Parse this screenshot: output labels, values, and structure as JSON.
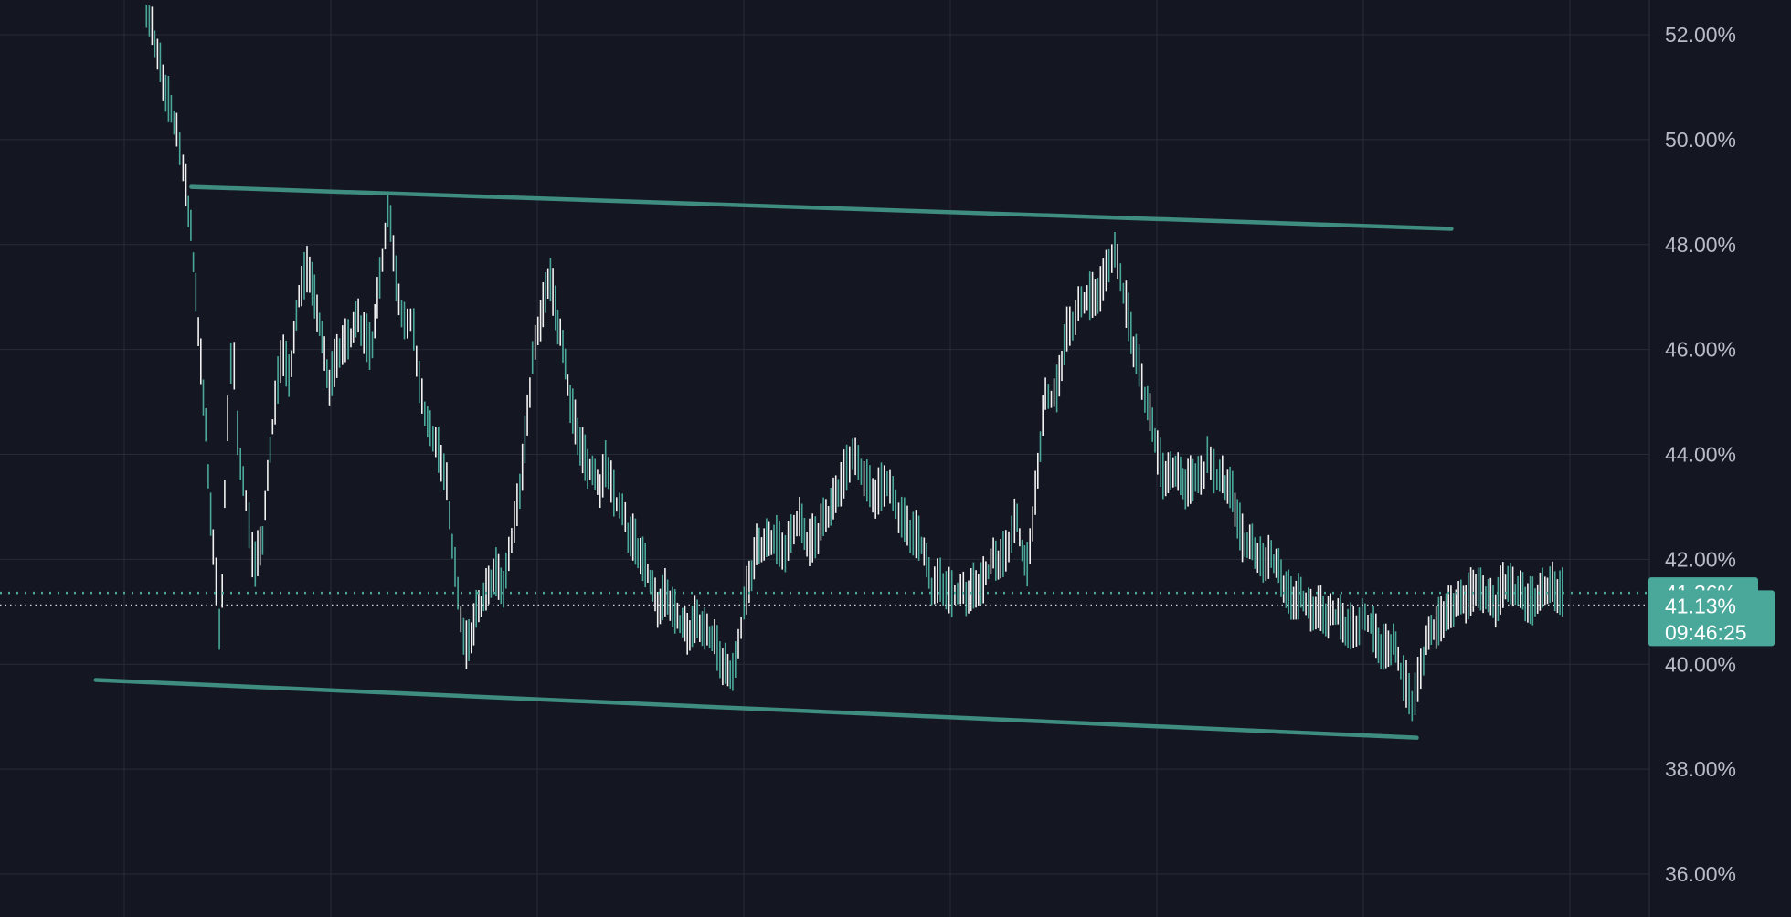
{
  "chart_data": {
    "type": "line",
    "title": "",
    "xlabel": "",
    "ylabel": "",
    "y_axis_side": "right",
    "ylim": [
      35.8,
      52.6
    ],
    "y_ticks": [
      52,
      50,
      48,
      46,
      44,
      42,
      40,
      38,
      36
    ],
    "y_tick_labels": [
      "52.00%",
      "50.00%",
      "48.00%",
      "46.00%",
      "44.00%",
      "42.00%",
      "40.00%",
      "38.00%",
      "36.00%"
    ],
    "x_range": [
      0,
      1000
    ],
    "grid": true,
    "series": [
      {
        "style": "bar-ticks",
        "x": [
          88,
          93,
          98,
          103,
          108,
          112,
          115,
          118,
          121,
          124,
          127,
          130,
          134,
          137,
          141,
          145,
          150,
          154,
          160,
          166,
          171,
          176,
          182,
          187,
          193,
          199,
          205,
          212,
          218,
          225,
          231,
          236,
          241,
          246,
          250,
          255,
          260,
          265,
          270,
          275,
          282,
          288,
          294,
          300,
          306,
          311,
          316,
          322,
          327,
          333,
          339,
          345,
          351,
          357,
          363,
          368,
          373,
          380,
          386,
          392,
          398,
          404,
          410,
          416,
          422,
          428,
          434,
          439,
          445,
          452,
          458,
          464,
          470,
          477,
          484,
          490,
          497,
          503,
          509,
          516,
          523,
          530,
          537,
          544,
          551,
          558,
          564,
          571,
          578,
          585,
          591,
          597,
          603,
          609,
          616,
          622,
          627,
          633,
          640,
          646,
          653,
          660,
          668,
          675,
          682,
          688,
          695,
          701,
          706,
          712,
          718,
          724,
          729,
          733,
          737,
          742,
          748,
          754,
          760,
          765,
          770,
          776,
          782,
          788,
          794,
          800,
          806,
          812,
          818,
          825,
          832,
          838,
          844,
          850,
          857,
          864,
          870,
          876,
          882,
          888,
          894,
          900,
          906,
          912,
          918,
          924,
          930,
          936,
          942,
          948
        ],
        "values": [
          52.5,
          52.0,
          51.3,
          50.7,
          50.0,
          49.4,
          48.6,
          47.4,
          46.1,
          44.9,
          43.1,
          42.0,
          40.3,
          44.1,
          46.3,
          43.8,
          42.9,
          41.8,
          42.6,
          44.8,
          46.0,
          45.4,
          47.2,
          47.6,
          46.6,
          45.3,
          46.0,
          46.2,
          46.6,
          46.0,
          47.5,
          48.8,
          47.1,
          46.4,
          46.7,
          45.2,
          44.5,
          44.2,
          43.7,
          42.0,
          40.3,
          40.9,
          41.3,
          41.8,
          41.5,
          42.5,
          43.5,
          45.6,
          46.4,
          47.5,
          46.4,
          45.1,
          44.3,
          43.7,
          43.3,
          43.9,
          43.1,
          42.6,
          42.3,
          41.8,
          41.1,
          41.4,
          40.9,
          40.6,
          40.9,
          40.6,
          40.4,
          40.0,
          39.8,
          41.3,
          42.2,
          42.3,
          42.4,
          42.2,
          42.8,
          42.3,
          42.6,
          42.9,
          43.4,
          44.0,
          43.6,
          43.2,
          43.5,
          42.9,
          42.6,
          42.4,
          41.5,
          41.6,
          41.3,
          41.3,
          41.5,
          41.6,
          42.0,
          42.1,
          42.8,
          41.7,
          43.0,
          45.0,
          45.1,
          46.3,
          46.7,
          47.0,
          47.2,
          47.9,
          47.0,
          46.0,
          45.0,
          44.2,
          43.5,
          43.7,
          43.4,
          43.6,
          43.5,
          44.1,
          43.6,
          43.5,
          43.2,
          42.3,
          42.2,
          42.0,
          42.1,
          41.7,
          41.3,
          41.3,
          41.0,
          41.1,
          40.9,
          40.9,
          40.7,
          40.8,
          40.7,
          40.3,
          40.4,
          39.8,
          39.3,
          40.3,
          40.7,
          41.0,
          41.1,
          41.2,
          41.5,
          41.3,
          41.1,
          41.6,
          41.4,
          41.3,
          41.2,
          41.4,
          41.5,
          41.36
        ]
      }
    ],
    "trendlines": [
      {
        "name": "upper",
        "x": [
          116,
          880
        ],
        "y": [
          49.1,
          48.3
        ]
      },
      {
        "name": "lower",
        "x": [
          58,
          859
        ],
        "y": [
          39.7,
          38.6
        ]
      }
    ],
    "price_lines": [
      {
        "label": "41.36%",
        "value": 41.36,
        "style": "dotted",
        "color": "#4aa89a"
      },
      {
        "label": "41.13%",
        "value": 41.13,
        "style": "dotted-thin",
        "color": "#cfd3dc"
      }
    ],
    "countdown": "09:46:25"
  },
  "colors": {
    "background": "#141722",
    "grid": "#272b38",
    "trendline": "#3f8c80",
    "price_badge": "#4aa89a",
    "series_up": "#4aa89a",
    "series_down": "#f2f2f2",
    "axis_text": "#b9bcc6"
  }
}
